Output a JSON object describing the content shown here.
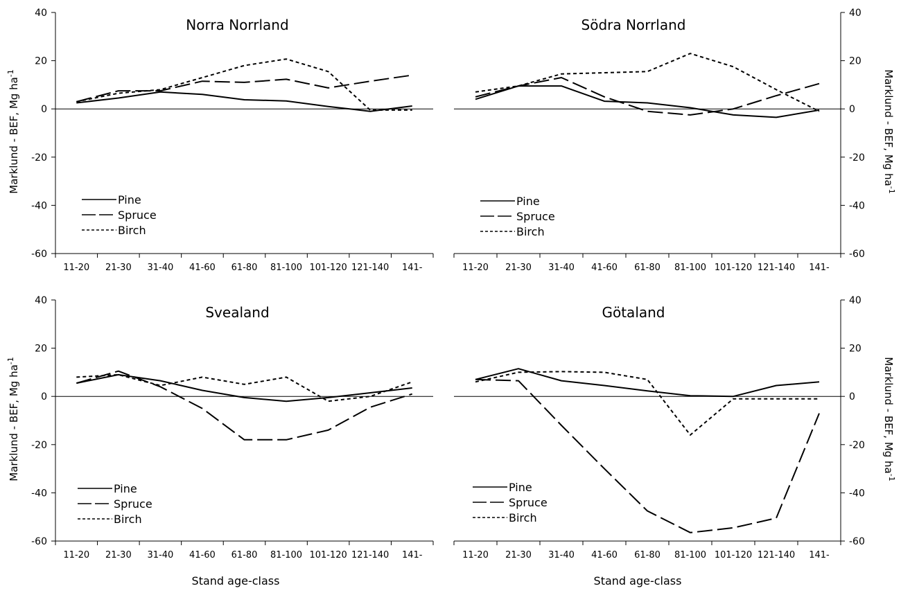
{
  "figure": {
    "ylabel_left": "Marklund - BEF, Mg ha",
    "ylabel_right": "Marklund - BEF, Mg ha",
    "ylabel_superscript": "-1",
    "xlabel": "Stand age-class"
  },
  "chart_data": [
    {
      "type": "line",
      "title": "Norra Norrland",
      "categories": [
        "11-20",
        "21-30",
        "31-40",
        "41-60",
        "61-80",
        "81-100",
        "101-120",
        "121-140",
        "141-"
      ],
      "ylim": [
        -60,
        40
      ],
      "yticks": [
        40,
        20,
        0,
        -20,
        -40,
        -60
      ],
      "ytick_labels": [
        "40",
        "20",
        "0",
        "-20",
        "-40",
        "-60"
      ],
      "series": [
        {
          "name": "Pine",
          "values": [
            2.5,
            4.5,
            7,
            6,
            3.8,
            3.3,
            1,
            -1,
            1.2
          ]
        },
        {
          "name": "Spruce",
          "values": [
            3,
            7.5,
            7.5,
            11.5,
            11,
            12.3,
            8.7,
            11.5,
            14
          ]
        },
        {
          "name": "Birch",
          "values": [
            3,
            6.5,
            8,
            13,
            18,
            20.7,
            15.5,
            -0.5,
            -0.5
          ]
        }
      ]
    },
    {
      "type": "line",
      "title": "Södra Norrland",
      "categories": [
        "11-20",
        "21-30",
        "31-40",
        "41-60",
        "61-80",
        "81-100",
        "101-120",
        "121-140",
        "141-"
      ],
      "ylim": [
        -60,
        40
      ],
      "yticks": [
        40,
        20,
        0,
        -20,
        -40,
        -60
      ],
      "ytick_labels": [
        "40",
        "20",
        "0",
        "-20",
        "-40",
        "-60"
      ],
      "series": [
        {
          "name": "Pine",
          "values": [
            4,
            9.5,
            9.5,
            3.2,
            2.5,
            0.5,
            -2.5,
            -3.5,
            -0.5
          ]
        },
        {
          "name": "Spruce",
          "values": [
            5,
            9.5,
            13,
            5,
            -1,
            -2.5,
            0,
            5.5,
            10.5
          ]
        },
        {
          "name": "Birch",
          "values": [
            7,
            9.5,
            14.5,
            15,
            15.5,
            23,
            17.5,
            8,
            -1
          ]
        }
      ]
    },
    {
      "type": "line",
      "title": "Svealand",
      "categories": [
        "11-20",
        "21-30",
        "31-40",
        "41-60",
        "61-80",
        "81-100",
        "101-120",
        "121-140",
        "141-"
      ],
      "ylim": [
        -60,
        40
      ],
      "yticks": [
        40,
        20,
        0,
        -20,
        -40,
        -60
      ],
      "ytick_labels": [
        "40",
        "20",
        "0",
        "-20",
        "-40",
        "-60"
      ],
      "series": [
        {
          "name": "Pine",
          "values": [
            5.5,
            9,
            6.5,
            2.5,
            -0.5,
            -2,
            -0.5,
            1.5,
            3.5
          ]
        },
        {
          "name": "Spruce",
          "values": [
            5.5,
            10.5,
            4,
            -5,
            -18,
            -18,
            -14,
            -4.5,
            1
          ]
        },
        {
          "name": "Birch",
          "values": [
            8,
            9,
            4.5,
            8,
            5,
            8,
            -2,
            0,
            6
          ]
        }
      ]
    },
    {
      "type": "line",
      "title": "Götaland",
      "categories": [
        "11-20",
        "21-30",
        "31-40",
        "41-60",
        "61-80",
        "81-100",
        "101-120",
        "121-140",
        "141-"
      ],
      "ylim": [
        -60,
        40
      ],
      "yticks": [
        40,
        20,
        0,
        -20,
        -40,
        -60
      ],
      "ytick_labels": [
        "40",
        "20",
        "0",
        "-20",
        "-40",
        "-60"
      ],
      "series": [
        {
          "name": "Pine",
          "values": [
            7,
            11.5,
            6.5,
            4.5,
            2.3,
            0.3,
            0,
            4.5,
            6
          ]
        },
        {
          "name": "Spruce",
          "values": [
            7,
            6.5,
            -12,
            -30,
            -47.5,
            -56.5,
            -54.5,
            -50.5,
            -7
          ]
        },
        {
          "name": "Birch",
          "values": [
            6,
            10,
            10.3,
            10,
            7,
            -16,
            -1,
            -1,
            -1
          ]
        }
      ]
    }
  ]
}
